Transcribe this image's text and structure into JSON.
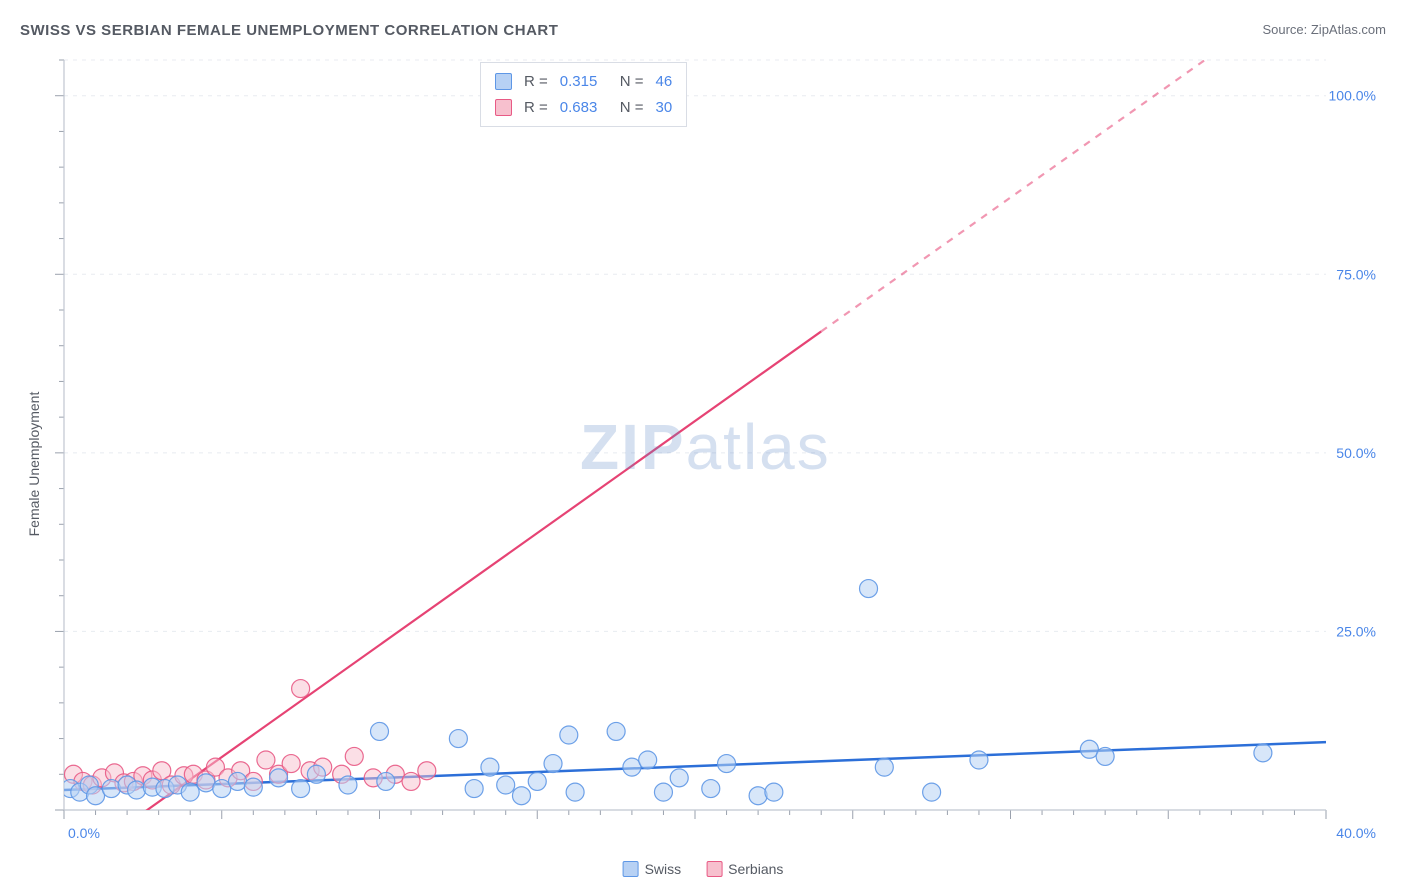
{
  "title": "SWISS VS SERBIAN FEMALE UNEMPLOYMENT CORRELATION CHART",
  "source_label": "Source: ",
  "source_name": "ZipAtlas.com",
  "ylabel": "Female Unemployment",
  "watermark": {
    "bold": "ZIP",
    "light": "atlas"
  },
  "chart": {
    "type": "scatter-with-regression",
    "background_color": "#ffffff",
    "grid_color": "#e8ebf0",
    "tick_color": "#9aa1ad",
    "axis_line_color": "#c0c6d0",
    "xlim": [
      0,
      40
    ],
    "ylim": [
      0,
      105
    ],
    "ytick_step": 25,
    "ytick_labels": [
      "25.0%",
      "50.0%",
      "75.0%",
      "100.0%"
    ],
    "x_minor_ticks": 40,
    "x_start_label": "0.0%",
    "x_end_label": "40.0%",
    "label_color": "#4a86e8",
    "series": [
      {
        "name": "Swiss",
        "color_fill": "#b7d1f4",
        "color_stroke": "#5e97e6",
        "marker_radius": 9,
        "marker_opacity": 0.55,
        "points": [
          [
            0.2,
            3.0
          ],
          [
            0.5,
            2.5
          ],
          [
            0.8,
            3.5
          ],
          [
            1.0,
            2.0
          ],
          [
            1.5,
            3.0
          ],
          [
            2.0,
            3.5
          ],
          [
            2.3,
            2.8
          ],
          [
            2.8,
            3.2
          ],
          [
            3.2,
            3.0
          ],
          [
            3.6,
            3.5
          ],
          [
            4.0,
            2.5
          ],
          [
            4.5,
            3.8
          ],
          [
            5.0,
            3.0
          ],
          [
            5.5,
            4.0
          ],
          [
            6.0,
            3.2
          ],
          [
            6.8,
            4.5
          ],
          [
            7.5,
            3.0
          ],
          [
            8.0,
            5.0
          ],
          [
            9.0,
            3.5
          ],
          [
            10.0,
            11.0
          ],
          [
            10.2,
            4.0
          ],
          [
            12.5,
            10.0
          ],
          [
            13.0,
            3.0
          ],
          [
            13.5,
            6.0
          ],
          [
            14.0,
            3.5
          ],
          [
            14.5,
            2.0
          ],
          [
            15.0,
            4.0
          ],
          [
            15.5,
            6.5
          ],
          [
            16.0,
            10.5
          ],
          [
            16.2,
            2.5
          ],
          [
            17.5,
            11.0
          ],
          [
            18.0,
            6.0
          ],
          [
            18.5,
            7.0
          ],
          [
            19.0,
            2.5
          ],
          [
            19.5,
            4.5
          ],
          [
            20.5,
            3.0
          ],
          [
            21.0,
            6.5
          ],
          [
            22.0,
            2.0
          ],
          [
            22.5,
            2.5
          ],
          [
            25.5,
            31.0
          ],
          [
            26.0,
            6.0
          ],
          [
            27.5,
            2.5
          ],
          [
            29.0,
            7.0
          ],
          [
            32.5,
            8.5
          ],
          [
            33.0,
            7.5
          ],
          [
            38.0,
            8.0
          ]
        ],
        "regression": {
          "x1": 0,
          "y1": 2.8,
          "x2": 40,
          "y2": 9.5,
          "solid": true,
          "color": "#2c6fd8",
          "width": 2.5
        }
      },
      {
        "name": "Serbians",
        "color_fill": "#f7c0ce",
        "color_stroke": "#e85a85",
        "marker_radius": 9,
        "marker_opacity": 0.5,
        "points": [
          [
            0.3,
            5.0
          ],
          [
            0.6,
            4.0
          ],
          [
            0.9,
            3.5
          ],
          [
            1.2,
            4.5
          ],
          [
            1.6,
            5.2
          ],
          [
            1.9,
            3.8
          ],
          [
            2.2,
            4.0
          ],
          [
            2.5,
            4.8
          ],
          [
            2.8,
            4.2
          ],
          [
            3.1,
            5.5
          ],
          [
            3.4,
            3.5
          ],
          [
            3.8,
            4.8
          ],
          [
            4.1,
            5.0
          ],
          [
            4.5,
            4.2
          ],
          [
            4.8,
            6.0
          ],
          [
            5.2,
            4.5
          ],
          [
            5.6,
            5.5
          ],
          [
            6.0,
            4.0
          ],
          [
            6.4,
            7.0
          ],
          [
            6.8,
            5.0
          ],
          [
            7.2,
            6.5
          ],
          [
            7.5,
            17.0
          ],
          [
            7.8,
            5.5
          ],
          [
            8.2,
            6.0
          ],
          [
            8.8,
            5.0
          ],
          [
            9.2,
            7.5
          ],
          [
            9.8,
            4.5
          ],
          [
            10.5,
            5.0
          ],
          [
            11.0,
            4.0
          ],
          [
            11.5,
            5.5
          ]
        ],
        "regression": {
          "x1": 2.0,
          "y1": -2.0,
          "x2": 24,
          "y2": 67,
          "dashed_x2": 40,
          "dashed_y2": 117,
          "color": "#e64374",
          "width": 2.2
        }
      }
    ]
  },
  "stats": {
    "rows": [
      {
        "swatch_fill": "#b7d1f4",
        "swatch_stroke": "#5e97e6",
        "r": "0.315",
        "n": "46"
      },
      {
        "swatch_fill": "#f7c0ce",
        "swatch_stroke": "#e85a85",
        "r": "0.683",
        "n": "30"
      }
    ],
    "r_label": "R =",
    "n_label": "N ="
  },
  "legend": {
    "items": [
      {
        "label": "Swiss",
        "fill": "#b7d1f4",
        "stroke": "#5e97e6"
      },
      {
        "label": "Serbians",
        "fill": "#f7c0ce",
        "stroke": "#e85a85"
      }
    ]
  }
}
